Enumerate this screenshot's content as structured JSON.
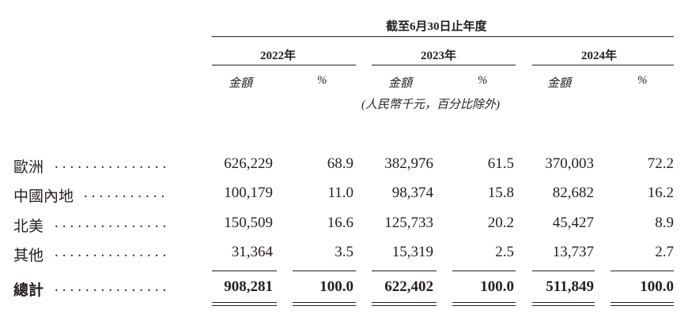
{
  "header": {
    "period_title": "截至6月30日止年度",
    "years": [
      "2022年",
      "2023年",
      "2024年"
    ],
    "amount_label": "金額",
    "percent_label": "%",
    "unit_note": "(人民幣千元，百分比除外)"
  },
  "rows": [
    {
      "label": "歐洲",
      "dots": "...............",
      "values": [
        "626,229",
        "68.9",
        "382,976",
        "61.5",
        "370,003",
        "72.2"
      ]
    },
    {
      "label": "中國內地",
      "dots": "...........",
      "values": [
        "100,179",
        "11.0",
        "98,374",
        "15.8",
        "82,682",
        "16.2"
      ]
    },
    {
      "label": "北美",
      "dots": "...............",
      "values": [
        "150,509",
        "16.6",
        "125,733",
        "20.2",
        "45,427",
        "8.9"
      ]
    },
    {
      "label": "其他",
      "dots": "...............",
      "values": [
        "31,364",
        "3.5",
        "15,319",
        "2.5",
        "13,737",
        "2.7"
      ]
    }
  ],
  "total": {
    "label": "總計",
    "dots": "...............",
    "values": [
      "908,281",
      "100.0",
      "622,402",
      "100.0",
      "511,849",
      "100.0"
    ]
  }
}
